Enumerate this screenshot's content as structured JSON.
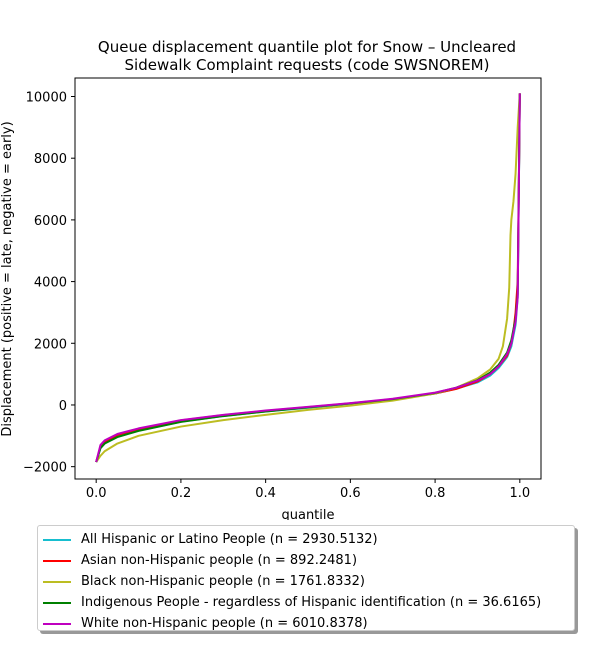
{
  "chart_data": {
    "type": "line",
    "title": [
      "Queue displacement quantile plot for Snow – Uncleared",
      "Sidewalk Complaint  requests (code SWSNOREM)"
    ],
    "xlabel": "quantile",
    "ylabel": "Displacement (positive = late, negative = early)",
    "xlim": [
      -0.05,
      1.05
    ],
    "ylim": [
      -2400,
      10600
    ],
    "xticks": [
      0.0,
      0.2,
      0.4,
      0.6,
      0.8,
      1.0
    ],
    "xtick_labels": [
      "0.0",
      "0.2",
      "0.4",
      "0.6",
      "0.8",
      "1.0"
    ],
    "yticks": [
      -2000,
      0,
      2000,
      4000,
      6000,
      8000,
      10000
    ],
    "ytick_labels": [
      "−2000",
      "0",
      "2000",
      "4000",
      "6000",
      "8000",
      "10000"
    ],
    "grid": false,
    "legend_position": "below",
    "series": [
      {
        "name": "All Hispanic or Latino People (n = 2930.5132)",
        "color": "#17becf",
        "x": [
          0.0,
          0.01,
          0.02,
          0.05,
          0.1,
          0.2,
          0.3,
          0.4,
          0.5,
          0.6,
          0.7,
          0.8,
          0.85,
          0.9,
          0.93,
          0.95,
          0.97,
          0.98,
          0.99,
          0.995,
          1.0
        ],
        "y": [
          -1850,
          -1400,
          -1250,
          -1030,
          -830,
          -540,
          -360,
          -210,
          -90,
          40,
          170,
          370,
          530,
          730,
          950,
          1200,
          1550,
          1900,
          2600,
          3500,
          10100
        ]
      },
      {
        "name": "Asian non-Hispanic people (n = 892.2481)",
        "color": "#ff0000",
        "x": [
          0.0,
          0.01,
          0.02,
          0.05,
          0.1,
          0.2,
          0.3,
          0.4,
          0.5,
          0.6,
          0.7,
          0.8,
          0.85,
          0.9,
          0.93,
          0.95,
          0.97,
          0.98,
          0.985,
          0.99,
          0.995,
          1.0
        ],
        "y": [
          -1850,
          -1350,
          -1200,
          -970,
          -780,
          -500,
          -330,
          -190,
          -70,
          50,
          180,
          370,
          520,
          760,
          1000,
          1250,
          1600,
          2000,
          2400,
          3000,
          4000,
          10100
        ]
      },
      {
        "name": "Black non-Hispanic people (n = 1761.8332)",
        "color": "#bcbd22",
        "x": [
          0.0,
          0.01,
          0.02,
          0.05,
          0.1,
          0.2,
          0.3,
          0.4,
          0.5,
          0.6,
          0.7,
          0.8,
          0.85,
          0.9,
          0.93,
          0.95,
          0.96,
          0.97,
          0.975,
          0.978,
          0.98,
          0.985,
          0.99,
          0.995,
          1.0
        ],
        "y": [
          -1850,
          -1650,
          -1500,
          -1250,
          -1000,
          -700,
          -490,
          -320,
          -160,
          -20,
          140,
          370,
          560,
          860,
          1150,
          1500,
          1900,
          2800,
          3800,
          5500,
          6000,
          6600,
          7500,
          9000,
          10100
        ]
      },
      {
        "name": "Indigenous People - regardless of Hispanic identification (n = 36.6165)",
        "color": "#008000",
        "x": [
          0.0,
          0.01,
          0.02,
          0.05,
          0.1,
          0.2,
          0.3,
          0.4,
          0.5,
          0.6,
          0.7,
          0.8,
          0.85,
          0.9,
          0.93,
          0.95,
          0.97,
          0.98,
          0.99,
          0.995,
          1.0
        ],
        "y": [
          -1850,
          -1400,
          -1250,
          -1040,
          -840,
          -550,
          -360,
          -210,
          -80,
          50,
          190,
          390,
          560,
          800,
          1050,
          1300,
          1700,
          2100,
          2800,
          3600,
          10100
        ]
      },
      {
        "name": "White non-Hispanic people (n = 6010.8378)",
        "color": "#bf00bf",
        "x": [
          0.0,
          0.01,
          0.02,
          0.05,
          0.1,
          0.2,
          0.3,
          0.4,
          0.5,
          0.6,
          0.7,
          0.8,
          0.85,
          0.9,
          0.93,
          0.95,
          0.97,
          0.98,
          0.99,
          0.995,
          1.0
        ],
        "y": [
          -1850,
          -1300,
          -1150,
          -940,
          -760,
          -490,
          -320,
          -180,
          -60,
          60,
          200,
          400,
          560,
          790,
          1000,
          1250,
          1650,
          2000,
          2700,
          3500,
          10100
        ]
      }
    ]
  }
}
